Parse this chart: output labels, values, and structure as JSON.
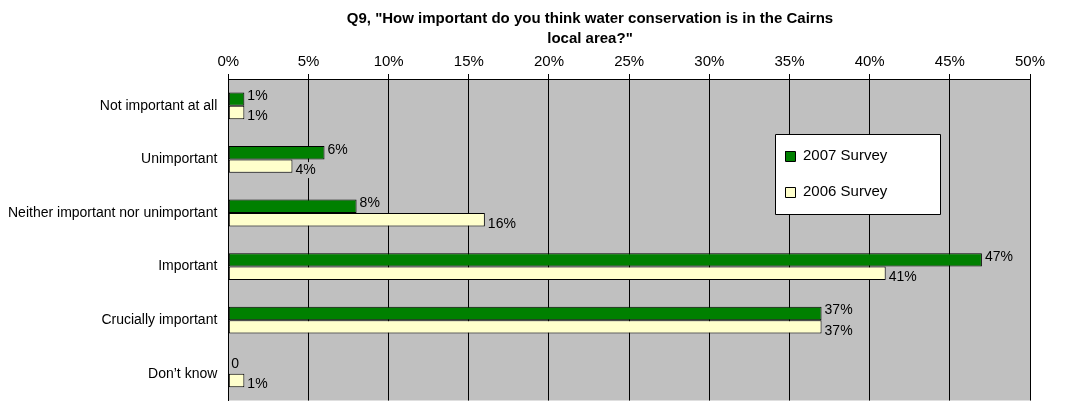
{
  "chart_data": {
    "type": "bar",
    "orientation": "horizontal",
    "title": "Q9, \"How important do you think water conservation is in the Cairns local area?\"",
    "categories": [
      "Not important at all",
      "Unimportant",
      "Neither important nor unimportant",
      "Important",
      "Crucially important",
      "Don’t know"
    ],
    "series": [
      {
        "name": "2007 Survey",
        "color": "#008000",
        "values": [
          1,
          6,
          8,
          47,
          37,
          0
        ],
        "value_labels": [
          "1%",
          "6%",
          "8%",
          "47%",
          "37%",
          "0"
        ]
      },
      {
        "name": "2006 Survey",
        "color": "#ffffcc",
        "values": [
          1,
          4,
          16,
          41,
          37,
          1
        ],
        "value_labels": [
          "1%",
          "4%",
          "16%",
          "41%",
          "37%",
          "1%"
        ]
      }
    ],
    "xlim": [
      0,
      50
    ],
    "xticks": [
      {
        "value": 0,
        "label": "0%"
      },
      {
        "value": 5,
        "label": "5%"
      },
      {
        "value": 10,
        "label": "10%"
      },
      {
        "value": 15,
        "label": "15%"
      },
      {
        "value": 20,
        "label": "20%"
      },
      {
        "value": 25,
        "label": "25%"
      },
      {
        "value": 30,
        "label": "30%"
      },
      {
        "value": 35,
        "label": "35%"
      },
      {
        "value": 40,
        "label": "40%"
      },
      {
        "value": 45,
        "label": "45%"
      },
      {
        "value": 50,
        "label": "50%"
      }
    ],
    "grid": "x",
    "legend": "top right"
  }
}
